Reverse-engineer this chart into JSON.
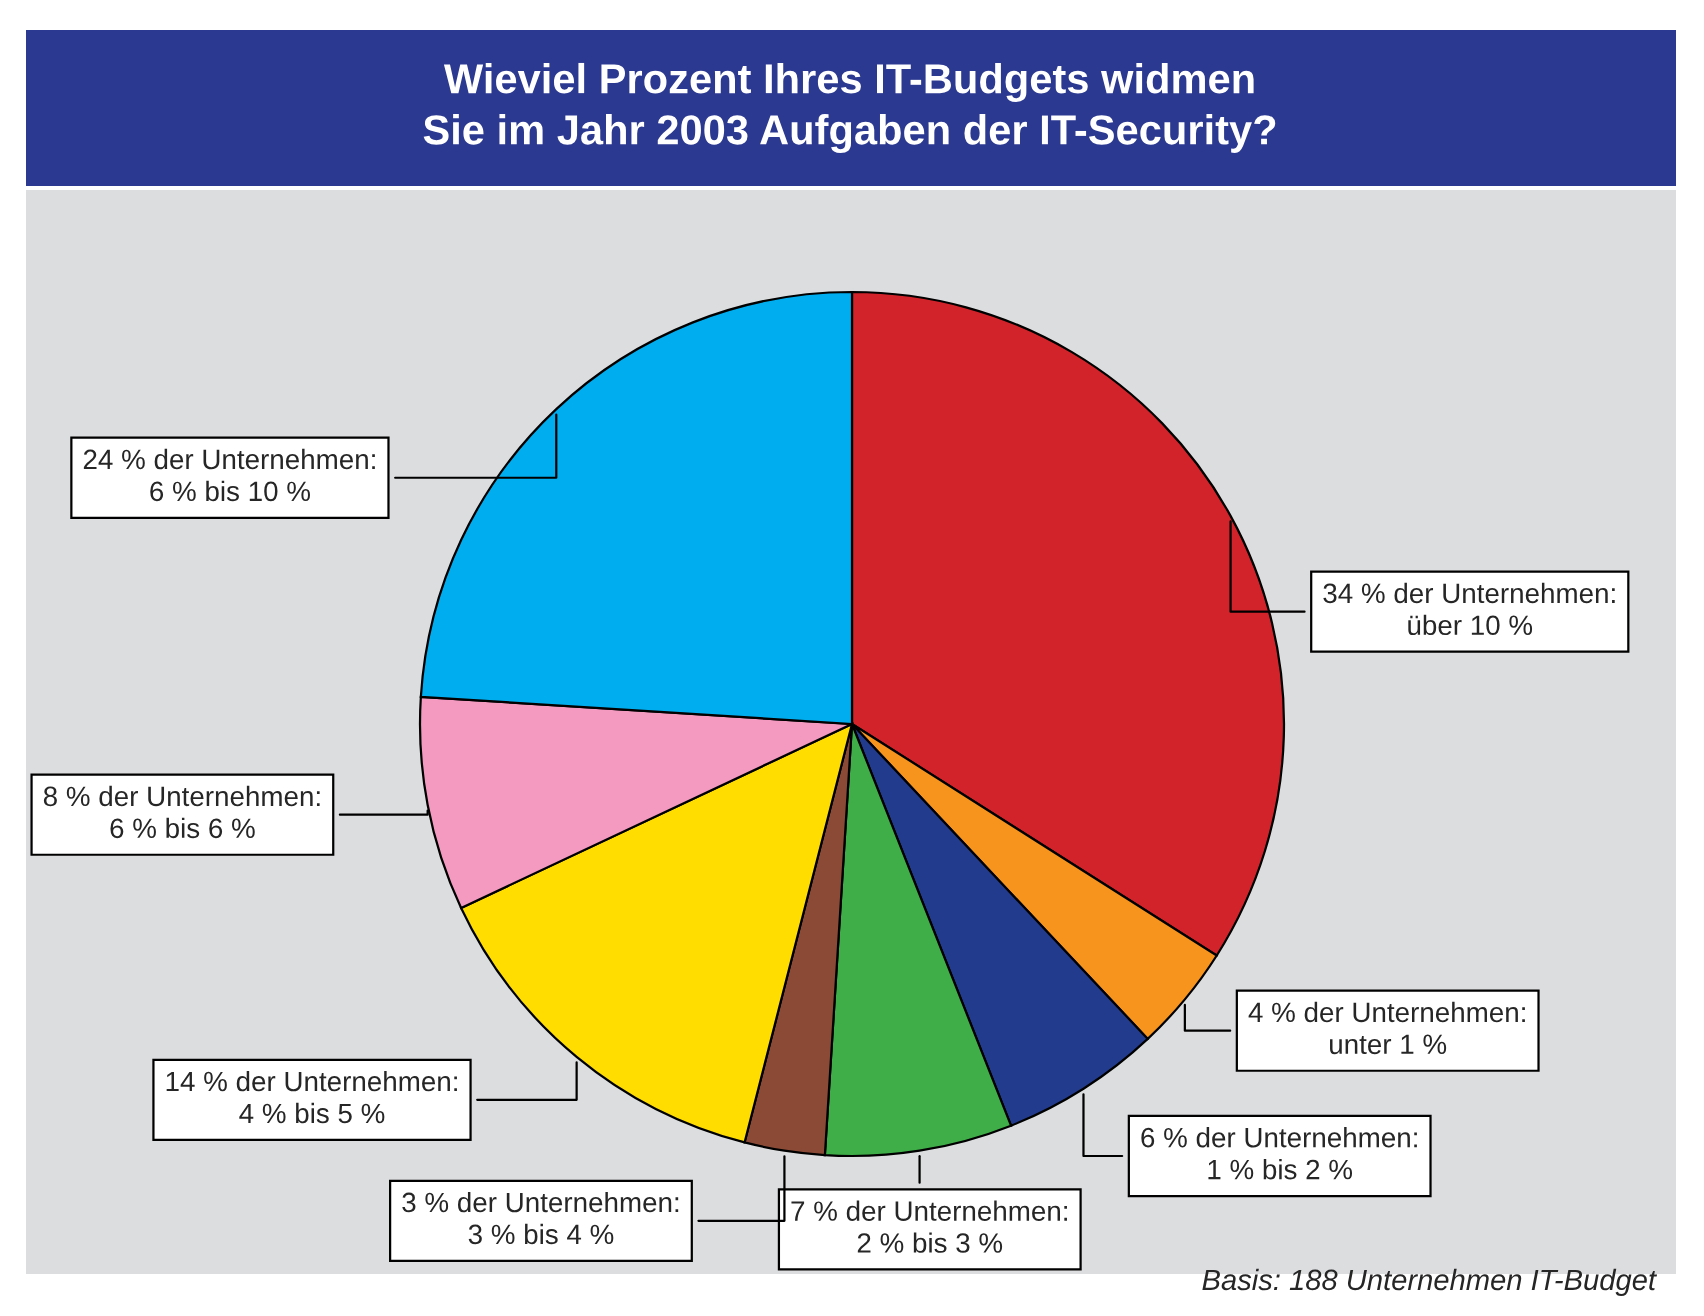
{
  "chart_data": {
    "type": "pie",
    "title": "Wieviel Prozent Ihres IT-Budgets widmen\nSie im Jahr 2003 Aufgaben der IT-Security?",
    "categories": [
      "34 % der Unternehmen:\nüber 10 %",
      "4 % der Unternehmen:\nunter 1 %",
      "6 % der Unternehmen:\n1 % bis 2 %",
      "7 % der Unternehmen:\n2 % bis 3 %",
      "3 % der Unternehmen:\n3 % bis 4 %",
      "14 % der Unternehmen:\n4 % bis 5 %",
      "8 % der Unternehmen:\n6 % bis 6 %",
      "24 % der Unternehmen:\n6 % bis 10 %"
    ],
    "values": [
      34,
      4,
      6,
      7,
      3,
      14,
      8,
      24
    ],
    "colors": [
      "#d2232a",
      "#f7941d",
      "#233b8c",
      "#3fae49",
      "#8b4a36",
      "#ffdd00",
      "#f49ac1",
      "#00aeef"
    ],
    "annotations": [
      "Basis: 188 Unternehmen IT-Budget"
    ]
  }
}
